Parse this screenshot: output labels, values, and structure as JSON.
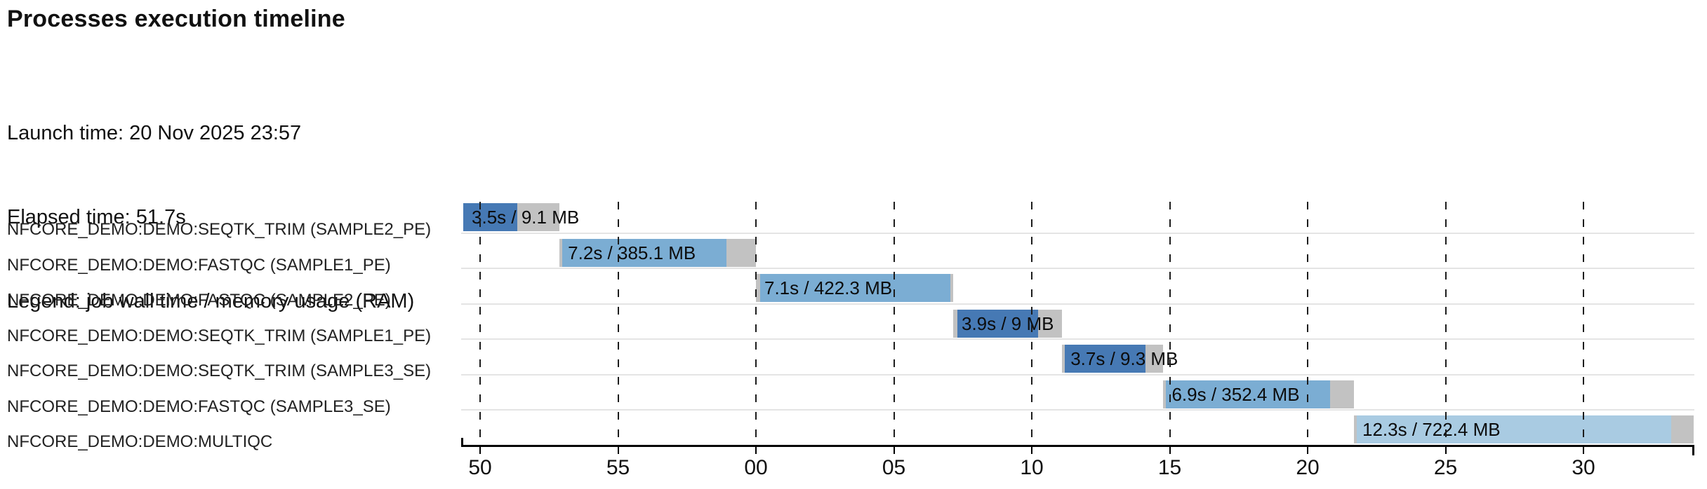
{
  "header": {
    "title": "Processes execution timeline"
  },
  "meta": {
    "launch": "Launch time: 20 Nov 2025 23:57",
    "elapsed": "Elapsed time: 51.7s",
    "legend": "Legend: job wall time / memory usage (RAM)"
  },
  "chart_data": {
    "type": "gantt",
    "title": "Processes execution timeline",
    "time_axis": {
      "unit": "seconds from 23:57:50",
      "tick_interval_s": 5,
      "domain_s": [
        -0.69,
        44.0
      ],
      "grid": "dashed-vertical",
      "ticks": [
        {
          "s": 0,
          "label": "50"
        },
        {
          "s": 5,
          "label": "55"
        },
        {
          "s": 10,
          "label": "00"
        },
        {
          "s": 15,
          "label": "05"
        },
        {
          "s": 20,
          "label": "10"
        },
        {
          "s": 25,
          "label": "15"
        },
        {
          "s": 30,
          "label": "20"
        },
        {
          "s": 35,
          "label": "25"
        },
        {
          "s": 40,
          "label": "30"
        }
      ]
    },
    "colors": {
      "dark": "#4679b4",
      "medium": "#7badd3",
      "light": "#a9cbe2",
      "pending": "#c2c2c2"
    },
    "processes": [
      {
        "label": "NFCORE_DEMO:DEMO:SEQTK_TRIM (SAMPLE2_PE)",
        "value_label": "3.5s / 9.1 MB",
        "start_s": -0.61,
        "lead_s": 0,
        "run_end_s": 1.35,
        "end_s": 2.88,
        "shade": "dark"
      },
      {
        "label": "NFCORE_DEMO:DEMO:FASTQC (SAMPLE1_PE)",
        "value_label": "7.2s / 385.1 MB",
        "start_s": 2.88,
        "lead_s": 0.1,
        "run_end_s": 8.93,
        "end_s": 10.0,
        "shade": "medium"
      },
      {
        "label": "NFCORE_DEMO:DEMO:FASTQC (SAMPLE2_PE)",
        "value_label": "7.1s / 422.3 MB",
        "start_s": 10.0,
        "lead_s": 0.15,
        "run_end_s": 17.05,
        "end_s": 17.15,
        "shade": "medium"
      },
      {
        "label": "NFCORE_DEMO:DEMO:SEQTK_TRIM (SAMPLE1_PE)",
        "value_label": "3.9s / 9 MB",
        "start_s": 17.15,
        "lead_s": 0.15,
        "run_end_s": 20.23,
        "end_s": 21.1,
        "shade": "dark"
      },
      {
        "label": "NFCORE_DEMO:DEMO:SEQTK_TRIM (SAMPLE3_SE)",
        "value_label": "3.7s / 9.3 MB",
        "start_s": 21.1,
        "lead_s": 0.1,
        "run_end_s": 24.12,
        "end_s": 24.77,
        "shade": "dark"
      },
      {
        "label": "NFCORE_DEMO:DEMO:FASTQC (SAMPLE3_SE)",
        "value_label": "6.9s / 352.4 MB",
        "start_s": 24.77,
        "lead_s": 0.1,
        "run_end_s": 30.82,
        "end_s": 31.68,
        "shade": "medium"
      },
      {
        "label": "NFCORE_DEMO:DEMO:MULTIQC",
        "value_label": "12.3s / 722.4 MB",
        "start_s": 31.68,
        "lead_s": 0.1,
        "run_end_s": 43.18,
        "end_s": 44.0,
        "shade": "light"
      }
    ]
  }
}
